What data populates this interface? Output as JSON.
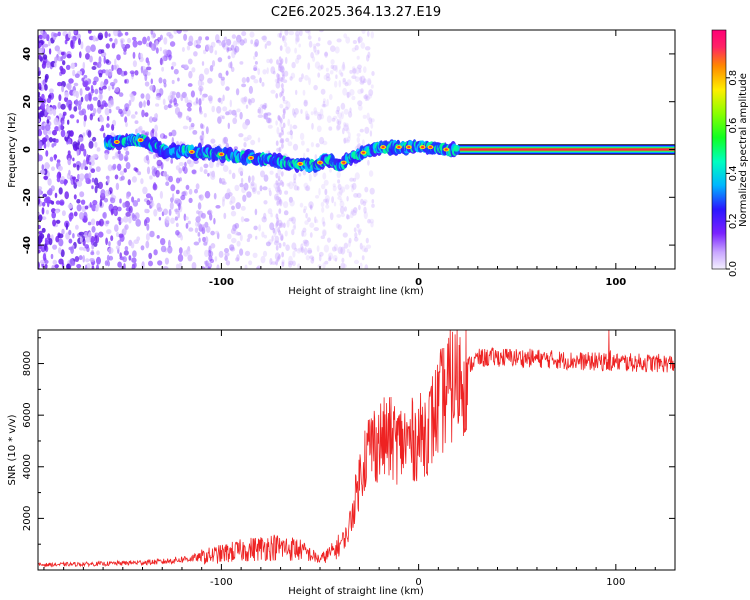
{
  "title": "C2E6.2025.364.13.27.E19",
  "chart_data": [
    {
      "type": "heatmap",
      "name": "spectrogram",
      "xlabel": "Height of straight line (km)",
      "ylabel": "Frequency (Hz)",
      "xlim": [
        -193,
        130
      ],
      "ylim": [
        -50,
        50
      ],
      "xticks": [
        -100,
        0,
        100
      ],
      "xtick_labels": [
        "-100",
        "0",
        "100"
      ],
      "yticks": [
        40,
        20,
        0,
        -20,
        -40
      ],
      "ytick_labels": [
        "40",
        "20",
        "0",
        "-20",
        "-40"
      ],
      "ridge": {
        "x": [
          -155,
          -140,
          -130,
          -120,
          -110,
          -100,
          -90,
          -80,
          -70,
          -60,
          -52,
          -48,
          -44,
          -40,
          -36,
          -30,
          -24,
          -18,
          -12,
          -6,
          0,
          6,
          12,
          20,
          130
        ],
        "y": [
          3,
          4,
          0,
          -1,
          -1,
          -2,
          -3,
          -4,
          -5,
          -6,
          -7,
          -4,
          -5,
          -7,
          -4,
          -2,
          0,
          1,
          1,
          1,
          1,
          1,
          0,
          0,
          0
        ]
      },
      "colorbar": {
        "label": "Normalized spectral amplitude",
        "range": [
          0,
          1
        ],
        "ticks": [
          0.0,
          0.2,
          0.4,
          0.6,
          0.8
        ],
        "tick_labels": [
          "0.0",
          "0.2",
          "0.4",
          "0.6",
          "0.8"
        ]
      }
    },
    {
      "type": "line",
      "name": "snr",
      "xlabel": "Height of straight line (km)",
      "ylabel": "SNR (10 * v/v)",
      "xlim": [
        -193,
        130
      ],
      "ylim": [
        0,
        9300
      ],
      "xticks": [
        -100,
        0,
        100
      ],
      "xtick_labels": [
        "-100",
        "0",
        "100"
      ],
      "yticks": [
        2000,
        4000,
        6000,
        8000
      ],
      "ytick_labels": [
        "2000",
        "4000",
        "6000",
        "8000"
      ],
      "color": "#ee2222",
      "series": [
        {
          "name": "SNR",
          "x": [
            -193,
            -160,
            -130,
            -110,
            -90,
            -75,
            -60,
            -50,
            -42,
            -36,
            -32,
            -28,
            -24,
            -20,
            -15,
            -10,
            -5,
            0,
            5,
            10,
            15,
            20,
            25,
            30,
            40,
            60,
            80,
            100,
            130
          ],
          "values": [
            200,
            240,
            320,
            500,
            750,
            900,
            800,
            400,
            800,
            1400,
            2800,
            4300,
            4900,
            5000,
            5100,
            4900,
            5000,
            5100,
            5500,
            6300,
            7000,
            7400,
            7900,
            8200,
            8250,
            8200,
            8100,
            8050,
            8000
          ]
        }
      ]
    }
  ]
}
